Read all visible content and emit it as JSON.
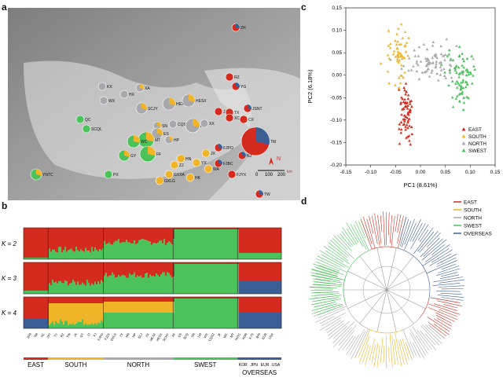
{
  "panels": {
    "a": "a",
    "b": "b",
    "c": "c",
    "d": "d"
  },
  "colors": {
    "east": "#d52b1e",
    "south": "#f0b429",
    "north": "#a9a9ad",
    "swest": "#4cc25a",
    "overseas": "#3b5f95"
  },
  "map": {
    "labels": [
      "ZH",
      "KX",
      "HX",
      "XA",
      "WX",
      "SCJY",
      "HEXX",
      "HESX",
      "RZ",
      "YG",
      "QC",
      "SCQL",
      "SN",
      "CQSZ",
      "ES",
      "AL",
      "JS",
      "TX",
      "JSNT",
      "XC",
      "CX",
      "HP",
      "XX",
      "MT",
      "WC",
      "TM",
      "FF",
      "FJPO",
      "GY",
      "YX",
      "HN",
      "ZJ",
      "PX",
      "GXLG",
      "GXXA",
      "HK",
      "FJBC",
      "FJYX",
      "YNTC",
      "NJ",
      "WA",
      "JX",
      "TW"
    ],
    "compass": "N",
    "scale": [
      "0",
      "100",
      "200"
    ],
    "scale_unit": "km"
  },
  "structure": {
    "k_labels": [
      "K = 2",
      "K = 3",
      "K = 4"
    ],
    "groups": [
      "EAST",
      "SOUTH",
      "NORTH",
      "SWEST",
      "OVERSEAS"
    ],
    "overseas_sub": [
      "KOR",
      "JPN",
      "EUR",
      "USA"
    ],
    "pop_labels": [
      "JSN",
      "TM",
      "XC",
      "JXT",
      "TV",
      "RZ",
      "TW",
      "JX",
      "GT",
      "JJ",
      "FJ",
      "FJPO",
      "FJZX",
      "GXLG",
      "YX",
      "HN",
      "HP",
      "SCJ",
      "XX",
      "HEXA",
      "HESX",
      "SCHV",
      "XA",
      "ES",
      "SCQ",
      "SN",
      "LM",
      "WX",
      "CQSZ",
      "JF",
      "WC",
      "MT",
      "YNTC",
      "KOR",
      "KYS",
      "JPN",
      "EUR",
      "USA"
    ]
  },
  "chart_data": {
    "type": "scatter",
    "xlabel": "PC1 (8.61%)",
    "ylabel": "PC2 (6.18%)",
    "xlim": [
      -0.15,
      0.15
    ],
    "ylim": [
      -0.2,
      0.15
    ],
    "xticks": [
      "-0.15",
      "-0.10",
      "-0.05",
      "0.00",
      "0.05",
      "0.10",
      "0.15"
    ],
    "yticks": [
      "0.15",
      "0.10",
      "0.05",
      "0.00",
      "-0.05",
      "-0.10",
      "-0.15",
      "-0.20"
    ],
    "legend_position": "bottom-right",
    "series": [
      {
        "name": "EAST",
        "color": "#d52b1e",
        "cx": -0.03,
        "cy": -0.09,
        "sx": 0.008,
        "sy": 0.035,
        "n": 70
      },
      {
        "name": "SOUTH",
        "color": "#f0b429",
        "cx": -0.045,
        "cy": 0.04,
        "sx": 0.012,
        "sy": 0.03,
        "n": 55
      },
      {
        "name": "NORTH",
        "color": "#a9a9ad",
        "cx": 0.02,
        "cy": 0.03,
        "sx": 0.03,
        "sy": 0.02,
        "n": 80
      },
      {
        "name": "SWEST",
        "color": "#4cc25a",
        "cx": 0.08,
        "cy": -0.005,
        "sx": 0.015,
        "sy": 0.03,
        "n": 80
      }
    ]
  },
  "tree": {
    "legend": [
      {
        "name": "EAST",
        "color": "#d52b1e"
      },
      {
        "name": "SOUTH",
        "color": "#f0b429"
      },
      {
        "name": "NORTH",
        "color": "#a9a9ad"
      },
      {
        "name": "SWEST",
        "color": "#4cc25a"
      },
      {
        "name": "OVERSEAS",
        "color": "#3b5f95"
      }
    ]
  }
}
